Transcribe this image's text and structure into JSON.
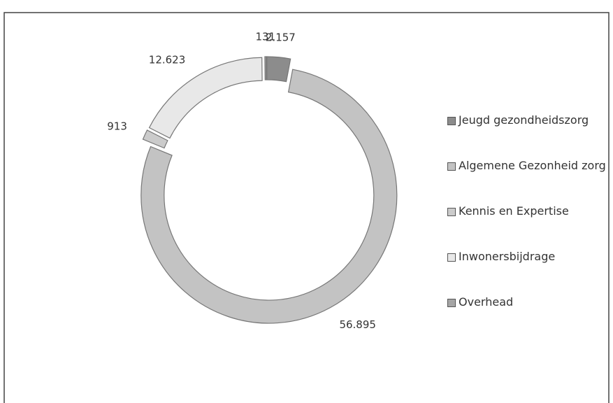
{
  "chart_data": {
    "type": "donut",
    "categories": [
      "Jeugd gezondheidszorg",
      "Algemene Gezonheid zorg",
      "Kennis en Expertise",
      "Inwonersbijdrage",
      "Overhead"
    ],
    "values": [
      2157,
      56895,
      913,
      12623,
      131
    ],
    "value_labels": [
      "2.157",
      "56.895",
      "913",
      "12.623",
      "131"
    ],
    "colors": [
      "#8c8c8c",
      "#c3c3c3",
      "#cbcbcb",
      "#e8e8e8",
      "#a5a5a5"
    ],
    "legend": "right"
  }
}
